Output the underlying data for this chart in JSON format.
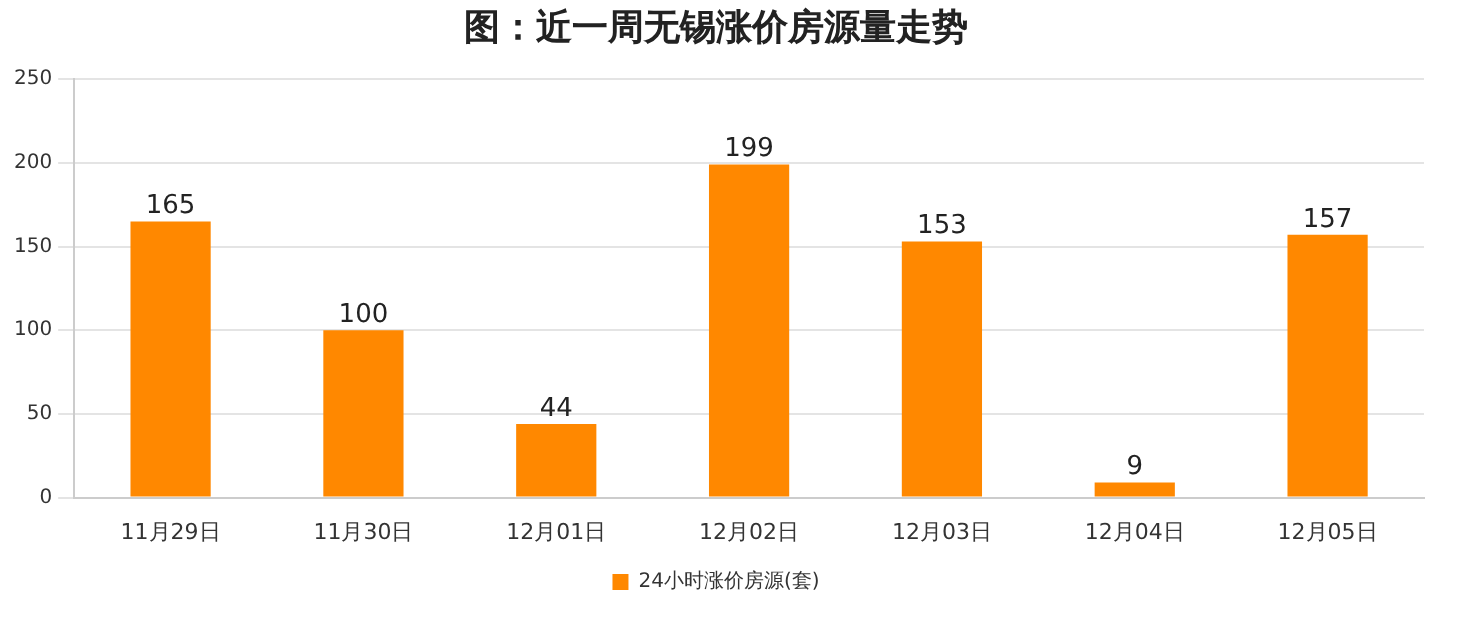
{
  "chart_data": {
    "type": "bar",
    "title": "图：近一周无锡涨价房源量走势",
    "categories": [
      "11月29日",
      "11月30日",
      "12月01日",
      "12月02日",
      "12月03日",
      "12月04日",
      "12月05日"
    ],
    "series": [
      {
        "name": "24小时涨价房源(套)",
        "color": "#ff8800",
        "values": [
          165,
          100,
          44,
          199,
          153,
          9,
          157
        ]
      }
    ],
    "ylim": [
      0,
      250
    ],
    "yticks": [
      0,
      50,
      100,
      150,
      200,
      250
    ],
    "grid": "y",
    "legend": "bottom",
    "data_labels": true
  }
}
